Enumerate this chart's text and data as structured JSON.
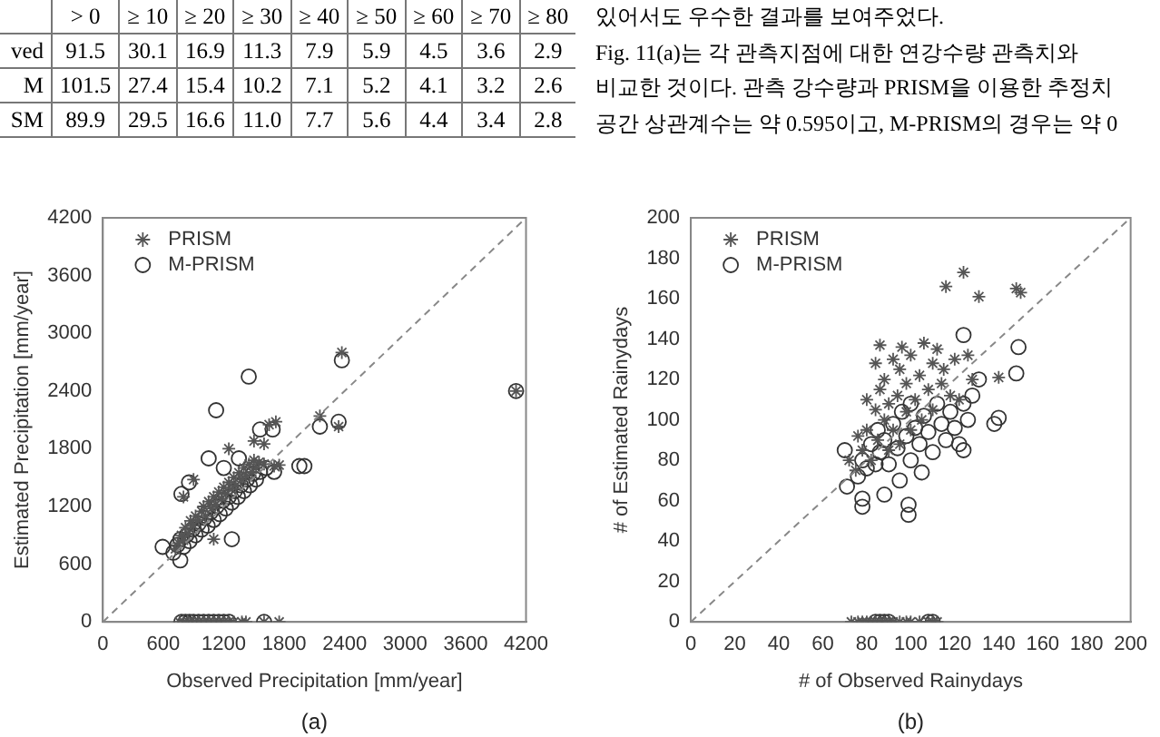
{
  "chart_data": [
    {
      "type": "other",
      "annotations": [
        "\t> 0\t≥ 10\t≥ 20\t≥ 30\t≥ 40\t≥ 50\t≥ 60\t≥ 70\t≥ 80",
        "ved\t91.5\t30.1\t16.9\t11.3\t7.9\t5.9\t4.5\t3.6\t2.9",
        "M\t101.5\t27.4\t15.4\t10.2\t7.1\t5.2\t4.1\t3.2\t2.6",
        "SM\t89.9\t29.5\t16.6\t11.0\t7.7\t5.6\t4.4\t3.4\t2.8",
        "있어서도 우수한 결과를 보여주었다.",
        "Fig. 11(a)는 각 관측지점에 대한 연강수량 관측치와",
        "비교한 것이다. 관측 강수량과 PRISM을 이용한 추정치",
        "공간 상관계수는 약 0.595이고, M-PRISM의 경우는 약 0"
      ]
    },
    {
      "type": "scatter",
      "xlabel": "Observed Precipitation [mm/year]",
      "ylabel": "Estimated Precipitation [mm/year]",
      "annotations": [
        "(a)"
      ],
      "xlim": [
        0,
        4200
      ],
      "xticks": [
        0,
        600,
        1200,
        1800,
        2400,
        3000,
        3600,
        4200
      ],
      "ylim": [
        0,
        4200
      ],
      "yticks": [
        0,
        600,
        1200,
        1800,
        2400,
        3000,
        3600,
        4200
      ],
      "grid": false,
      "legend": "top left",
      "series": [
        {
          "type": "line",
          "color": "#888888",
          "line_style": "dashed",
          "marker": "none",
          "x": [
            0,
            4200
          ],
          "values": [
            0,
            4200
          ]
        },
        {
          "name": "PRISM",
          "color": "#555555",
          "marker": "cross",
          "x": [
            720,
            750,
            780,
            800,
            820,
            850,
            870,
            900,
            920,
            950,
            980,
            1000,
            1020,
            1050,
            1080,
            1100,
            1120,
            1150,
            1180,
            1200,
            1220,
            1250,
            1280,
            1300,
            1320,
            1350,
            1380,
            1400,
            1420,
            1450,
            1480,
            1500,
            1520,
            1550,
            1600,
            1700,
            1750,
            1650,
            1717,
            1600,
            1500,
            1250,
            900,
            800,
            2372,
            2154,
            2340,
            4101,
            1100,
            760,
            800,
            850,
            900,
            950,
            1000,
            1050,
            1100,
            1150,
            1200,
            1250,
            1300,
            1380,
            1420,
            1600,
            1750
          ],
          "values": [
            760,
            820,
            900,
            850,
            980,
            920,
            1050,
            1000,
            1100,
            1060,
            1150,
            1200,
            1100,
            1250,
            1180,
            1300,
            1220,
            1350,
            1280,
            1400,
            1330,
            1450,
            1380,
            1500,
            1420,
            1550,
            1480,
            1600,
            1520,
            1640,
            1560,
            1680,
            1600,
            1660,
            1640,
            1620,
            1630,
            2050,
            2080,
            1850,
            1880,
            1800,
            1480,
            1300,
            2800,
            2140,
            2030,
            2400,
            860,
            0,
            0,
            0,
            0,
            0,
            0,
            0,
            0,
            0,
            0,
            0,
            0,
            0,
            0,
            0,
            0
          ]
        },
        {
          "name": "M-PRISM",
          "color": "#333333",
          "marker": "circle",
          "x": [
            593,
            768,
            855,
            780,
            1280,
            1448,
            1124,
            2372,
            2154,
            2340,
            4101,
            1560,
            1685,
            2000,
            1950,
            700,
            740,
            770,
            800,
            830,
            860,
            890,
            920,
            950,
            980,
            1010,
            1040,
            1070,
            1100,
            1130,
            1160,
            1190,
            1220,
            1250,
            1280,
            1310,
            1340,
            1370,
            1400,
            1430,
            1460,
            1490,
            1520,
            1560,
            1620,
            1700,
            1050,
            1200,
            1350,
            780,
            820,
            860,
            900,
            950,
            1000,
            1050,
            1100,
            1150,
            1200,
            1250,
            1600
          ],
          "values": [
            780,
            640,
            1450,
            1330,
            860,
            2550,
            2200,
            2720,
            2030,
            2080,
            2400,
            2000,
            2000,
            1620,
            1620,
            720,
            800,
            860,
            780,
            900,
            840,
            960,
            900,
            1020,
            960,
            1080,
            1000,
            1140,
            1060,
            1200,
            1120,
            1260,
            1180,
            1300,
            1240,
            1360,
            1300,
            1420,
            1360,
            1480,
            1420,
            1540,
            1480,
            1560,
            1600,
            1560,
            1700,
            1600,
            1700,
            0,
            0,
            0,
            0,
            0,
            0,
            0,
            0,
            0,
            0,
            0,
            0
          ]
        }
      ]
    },
    {
      "type": "scatter",
      "xlabel": "# of Observed Rainydays",
      "ylabel": "# of Estimated Rainydays",
      "annotations": [
        "(b)"
      ],
      "xlim": [
        0,
        200
      ],
      "xticks": [
        0,
        20,
        40,
        60,
        80,
        100,
        120,
        140,
        160,
        180,
        200
      ],
      "ylim": [
        0,
        200
      ],
      "yticks": [
        0,
        20,
        40,
        60,
        80,
        100,
        120,
        140,
        160,
        180,
        200
      ],
      "grid": false,
      "legend": "top left",
      "series": [
        {
          "type": "line",
          "color": "#888888",
          "line_style": "dashed",
          "marker": "none",
          "x": [
            0,
            200
          ],
          "values": [
            0,
            200
          ]
        },
        {
          "name": "PRISM",
          "color": "#555555",
          "marker": "cross",
          "x": [
            75,
            78,
            80,
            82,
            84,
            85,
            86,
            88,
            88,
            90,
            90,
            92,
            92,
            94,
            95,
            95,
            96,
            98,
            98,
            100,
            100,
            102,
            104,
            105,
            106,
            108,
            110,
            110,
            112,
            114,
            115,
            118,
            120,
            122,
            80,
            76,
            72,
            84,
            86,
            116,
            124,
            131,
            148,
            150,
            140,
            126,
            128,
            73,
            76,
            78,
            80,
            82,
            84,
            86,
            88,
            90,
            92,
            95,
            98,
            100,
            104,
            108,
            110,
            112
          ],
          "values": [
            75,
            85,
            95,
            80,
            105,
            90,
            115,
            100,
            120,
            85,
            108,
            95,
            130,
            112,
            88,
            125,
            136,
            104,
            118,
            95,
            132,
            110,
            122,
            100,
            138,
            115,
            128,
            105,
            135,
            118,
            125,
            112,
            130,
            110,
            110,
            92,
            80,
            128,
            137,
            166,
            173,
            161,
            165,
            163,
            121,
            132,
            120,
            0,
            0,
            0,
            0,
            0,
            0,
            0,
            0,
            0,
            0,
            0,
            0,
            0,
            0,
            0,
            0,
            0
          ]
        },
        {
          "name": "M-PRISM",
          "color": "#333333",
          "marker": "circle",
          "x": [
            76,
            78,
            80,
            82,
            84,
            85,
            86,
            88,
            90,
            92,
            94,
            96,
            98,
            100,
            100,
            102,
            104,
            106,
            108,
            110,
            112,
            114,
            116,
            118,
            120,
            122,
            124,
            126,
            128,
            124,
            149,
            148,
            140,
            131,
            70,
            71,
            78,
            78,
            88,
            99,
            99,
            138,
            124,
            105,
            95,
            84,
            86,
            88,
            90,
            108,
            110
          ],
          "values": [
            72,
            80,
            76,
            88,
            78,
            95,
            84,
            90,
            78,
            98,
            86,
            104,
            92,
            80,
            108,
            96,
            88,
            102,
            94,
            84,
            108,
            98,
            90,
            104,
            96,
            88,
            108,
            100,
            112,
            142,
            136,
            123,
            101,
            120,
            85,
            67,
            61,
            57,
            63,
            53,
            58,
            98,
            85,
            74,
            70,
            0,
            0,
            0,
            0,
            0,
            0
          ]
        }
      ]
    }
  ]
}
